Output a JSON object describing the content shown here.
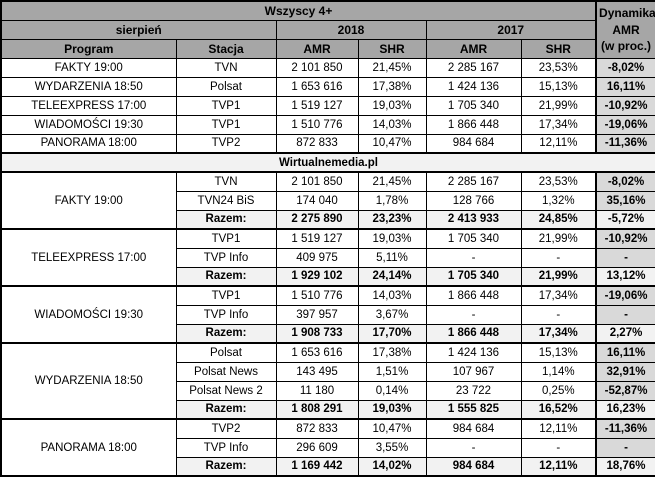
{
  "chart_data": {
    "type": "table",
    "title": "Wszyscy 4+",
    "source": "Wirtualnemedia.pl",
    "header": {
      "group_title": "Wszyscy 4+",
      "month": "sierpień",
      "year_2018": "2018",
      "year_2017": "2017",
      "program": "Program",
      "station": "Stacja",
      "amr": "AMR",
      "shr": "SHR",
      "dynamics_lines": [
        "Dynamika",
        "AMR",
        "(w proc.)"
      ]
    },
    "summary_rows": [
      {
        "program": "FAKTY 19:00",
        "station": "TVN",
        "amr_2018": "2 101 850",
        "shr_2018": "21,45%",
        "amr_2017": "2 285 167",
        "shr_2017": "23,53%",
        "dynamics": "-8,02%"
      },
      {
        "program": "WYDARZENIA 18:50",
        "station": "Polsat",
        "amr_2018": "1 653 616",
        "shr_2018": "17,38%",
        "amr_2017": "1 424 136",
        "shr_2017": "15,13%",
        "dynamics": "16,11%"
      },
      {
        "program": "TELEEXPRESS 17:00",
        "station": "TVP1",
        "amr_2018": "1 519 127",
        "shr_2018": "19,03%",
        "amr_2017": "1 705 340",
        "shr_2017": "21,99%",
        "dynamics": "-10,92%"
      },
      {
        "program": "WIADOMOŚCI 19:30",
        "station": "TVP1",
        "amr_2018": "1 510 776",
        "shr_2018": "14,03%",
        "amr_2017": "1 866 448",
        "shr_2017": "17,34%",
        "dynamics": "-19,06%"
      },
      {
        "program": "PANORAMA 18:00",
        "station": "TVP2",
        "amr_2018": "872 833",
        "shr_2018": "10,47%",
        "amr_2017": "984 684",
        "shr_2017": "12,11%",
        "dynamics": "-11,36%"
      }
    ],
    "groups": [
      {
        "program": "FAKTY 19:00",
        "rows": [
          {
            "station": "TVN",
            "amr_2018": "2 101 850",
            "shr_2018": "21,45%",
            "amr_2017": "2 285 167",
            "shr_2017": "23,53%",
            "dynamics": "-8,02%"
          },
          {
            "station": "TVN24 BiS",
            "amr_2018": "174 040",
            "shr_2018": "1,78%",
            "amr_2017": "128 766",
            "shr_2017": "1,32%",
            "dynamics": "35,16%"
          },
          {
            "station": "Razem:",
            "amr_2018": "2 275 890",
            "shr_2018": "23,23%",
            "amr_2017": "2 413 933",
            "shr_2017": "24,85%",
            "dynamics": "-5,72%",
            "total": true
          }
        ]
      },
      {
        "program": "TELEEXPRESS 17:00",
        "rows": [
          {
            "station": "TVP1",
            "amr_2018": "1 519 127",
            "shr_2018": "19,03%",
            "amr_2017": "1 705 340",
            "shr_2017": "21,99%",
            "dynamics": "-10,92%"
          },
          {
            "station": "TVP Info",
            "amr_2018": "409 975",
            "shr_2018": "5,11%",
            "amr_2017": "-",
            "shr_2017": "-",
            "dynamics": "-"
          },
          {
            "station": "Razem:",
            "amr_2018": "1 929 102",
            "shr_2018": "24,14%",
            "amr_2017": "1 705 340",
            "shr_2017": "21,99%",
            "dynamics": "13,12%",
            "total": true
          }
        ]
      },
      {
        "program": "WIADOMOŚCI 19:30",
        "rows": [
          {
            "station": "TVP1",
            "amr_2018": "1 510 776",
            "shr_2018": "14,03%",
            "amr_2017": "1 866 448",
            "shr_2017": "17,34%",
            "dynamics": "-19,06%"
          },
          {
            "station": "TVP Info",
            "amr_2018": "397 957",
            "shr_2018": "3,67%",
            "amr_2017": "-",
            "shr_2017": "-",
            "dynamics": "-"
          },
          {
            "station": "Razem:",
            "amr_2018": "1 908 733",
            "shr_2018": "17,70%",
            "amr_2017": "1 866 448",
            "shr_2017": "17,34%",
            "dynamics": "2,27%",
            "total": true
          }
        ]
      },
      {
        "program": "WYDARZENIA 18:50",
        "rows": [
          {
            "station": "Polsat",
            "amr_2018": "1 653 616",
            "shr_2018": "17,38%",
            "amr_2017": "1 424 136",
            "shr_2017": "15,13%",
            "dynamics": "16,11%"
          },
          {
            "station": "Polsat News",
            "amr_2018": "143 495",
            "shr_2018": "1,51%",
            "amr_2017": "107 967",
            "shr_2017": "1,14%",
            "dynamics": "32,91%"
          },
          {
            "station": "Polsat News 2",
            "amr_2018": "11 180",
            "shr_2018": "0,14%",
            "amr_2017": "23 722",
            "shr_2017": "0,25%",
            "dynamics": "-52,87%"
          },
          {
            "station": "Razem:",
            "amr_2018": "1 808 291",
            "shr_2018": "19,03%",
            "amr_2017": "1 555 825",
            "shr_2017": "16,52%",
            "dynamics": "16,23%",
            "total": true
          }
        ]
      },
      {
        "program": "PANORAMA 18:00",
        "rows": [
          {
            "station": "TVP2",
            "amr_2018": "872 833",
            "shr_2018": "10,47%",
            "amr_2017": "984 684",
            "shr_2017": "12,11%",
            "dynamics": "-11,36%"
          },
          {
            "station": "TVP Info",
            "amr_2018": "296 609",
            "shr_2018": "3,55%",
            "amr_2017": "-",
            "shr_2017": "-",
            "dynamics": "-"
          },
          {
            "station": "Razem:",
            "amr_2018": "1 169 442",
            "shr_2018": "14,02%",
            "amr_2017": "984 684",
            "shr_2017": "12,11%",
            "dynamics": "18,76%",
            "total": true
          }
        ]
      }
    ]
  },
  "colors": {
    "header_bg": "#a6a6a6",
    "dynamics_cell_bg": "#d9d9d9",
    "total_row_bg": "#f2f2f2",
    "source_row_bg": "#f2f2f2",
    "grid": "#000000",
    "text": "#000000",
    "row_bg": "#ffffff"
  }
}
